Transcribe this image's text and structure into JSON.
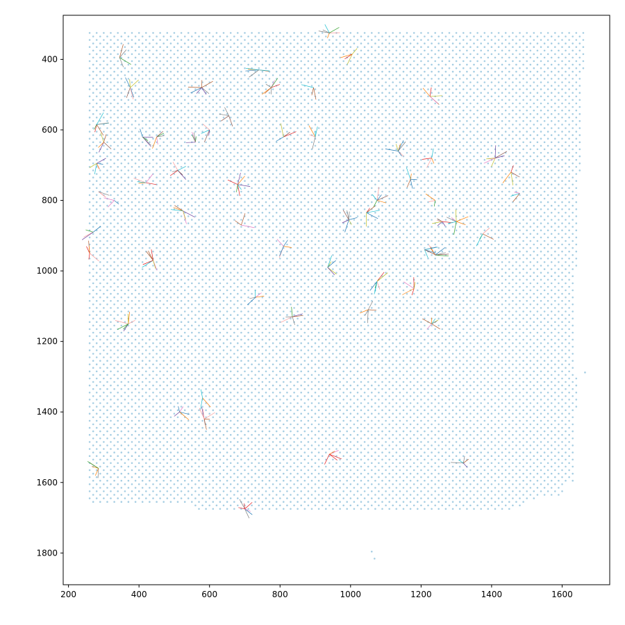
{
  "chart_data": {
    "type": "scatter",
    "title": "",
    "xlabel": "",
    "ylabel": "",
    "xlim": [
      185,
      1735
    ],
    "ylim": [
      1890,
      275
    ],
    "y_inverted": true,
    "grid": false,
    "legend": "none",
    "x_ticks": [
      200,
      400,
      600,
      800,
      1000,
      1200,
      1400,
      1600
    ],
    "y_ticks": [
      400,
      600,
      800,
      1000,
      1200,
      1400,
      1600,
      1800
    ],
    "x_tick_labels": [
      "200",
      "400",
      "600",
      "800",
      "1000",
      "1200",
      "1400",
      "1600"
    ],
    "y_tick_labels": [
      "400",
      "600",
      "800",
      "1000",
      "1200",
      "1400",
      "1600",
      "1800"
    ],
    "spot_grid": {
      "description": "hexagonal lattice of spots",
      "x_range": [
        260,
        1660
      ],
      "y_range": [
        325,
        1680
      ],
      "x_step": 20,
      "row_step": 10,
      "color": "#a6cee3"
    },
    "extra_spots": [
      [
        1060,
        1796
      ],
      [
        1068,
        1816
      ],
      [
        1665,
        1288
      ]
    ],
    "hubs": [
      {
        "x": 375,
        "y": 480
      },
      {
        "x": 578,
        "y": 480
      },
      {
        "x": 775,
        "y": 480
      },
      {
        "x": 895,
        "y": 480
      },
      {
        "x": 740,
        "y": 430
      },
      {
        "x": 345,
        "y": 395
      },
      {
        "x": 1005,
        "y": 385
      },
      {
        "x": 940,
        "y": 325
      },
      {
        "x": 300,
        "y": 635
      },
      {
        "x": 410,
        "y": 620
      },
      {
        "x": 450,
        "y": 620
      },
      {
        "x": 560,
        "y": 635
      },
      {
        "x": 600,
        "y": 600
      },
      {
        "x": 810,
        "y": 620
      },
      {
        "x": 900,
        "y": 620
      },
      {
        "x": 1135,
        "y": 660
      },
      {
        "x": 1230,
        "y": 680
      },
      {
        "x": 1225,
        "y": 505
      },
      {
        "x": 655,
        "y": 560
      },
      {
        "x": 280,
        "y": 585
      },
      {
        "x": 510,
        "y": 715
      },
      {
        "x": 680,
        "y": 755
      },
      {
        "x": 285,
        "y": 775
      },
      {
        "x": 1170,
        "y": 740
      },
      {
        "x": 1455,
        "y": 720
      },
      {
        "x": 1480,
        "y": 780
      },
      {
        "x": 1410,
        "y": 680
      },
      {
        "x": 1240,
        "y": 800
      },
      {
        "x": 995,
        "y": 855
      },
      {
        "x": 690,
        "y": 870
      },
      {
        "x": 1260,
        "y": 860
      },
      {
        "x": 1375,
        "y": 895
      },
      {
        "x": 810,
        "y": 930
      },
      {
        "x": 935,
        "y": 990
      },
      {
        "x": 1075,
        "y": 1030
      },
      {
        "x": 1050,
        "y": 1110
      },
      {
        "x": 1240,
        "y": 955
      },
      {
        "x": 835,
        "y": 1130
      },
      {
        "x": 1230,
        "y": 1150
      },
      {
        "x": 370,
        "y": 1150
      },
      {
        "x": 580,
        "y": 1360
      },
      {
        "x": 585,
        "y": 1420
      },
      {
        "x": 515,
        "y": 1400
      },
      {
        "x": 285,
        "y": 1560
      },
      {
        "x": 940,
        "y": 1520
      },
      {
        "x": 1320,
        "y": 1545
      },
      {
        "x": 700,
        "y": 1675
      },
      {
        "x": 260,
        "y": 950
      },
      {
        "x": 270,
        "y": 890
      },
      {
        "x": 730,
        "y": 1075
      },
      {
        "x": 1075,
        "y": 800
      },
      {
        "x": 1180,
        "y": 1050
      },
      {
        "x": 280,
        "y": 695
      },
      {
        "x": 1045,
        "y": 835
      },
      {
        "x": 1300,
        "y": 860
      },
      {
        "x": 1210,
        "y": 940
      },
      {
        "x": 330,
        "y": 800
      },
      {
        "x": 440,
        "y": 970
      },
      {
        "x": 420,
        "y": 750
      },
      {
        "x": 525,
        "y": 830
      }
    ]
  }
}
